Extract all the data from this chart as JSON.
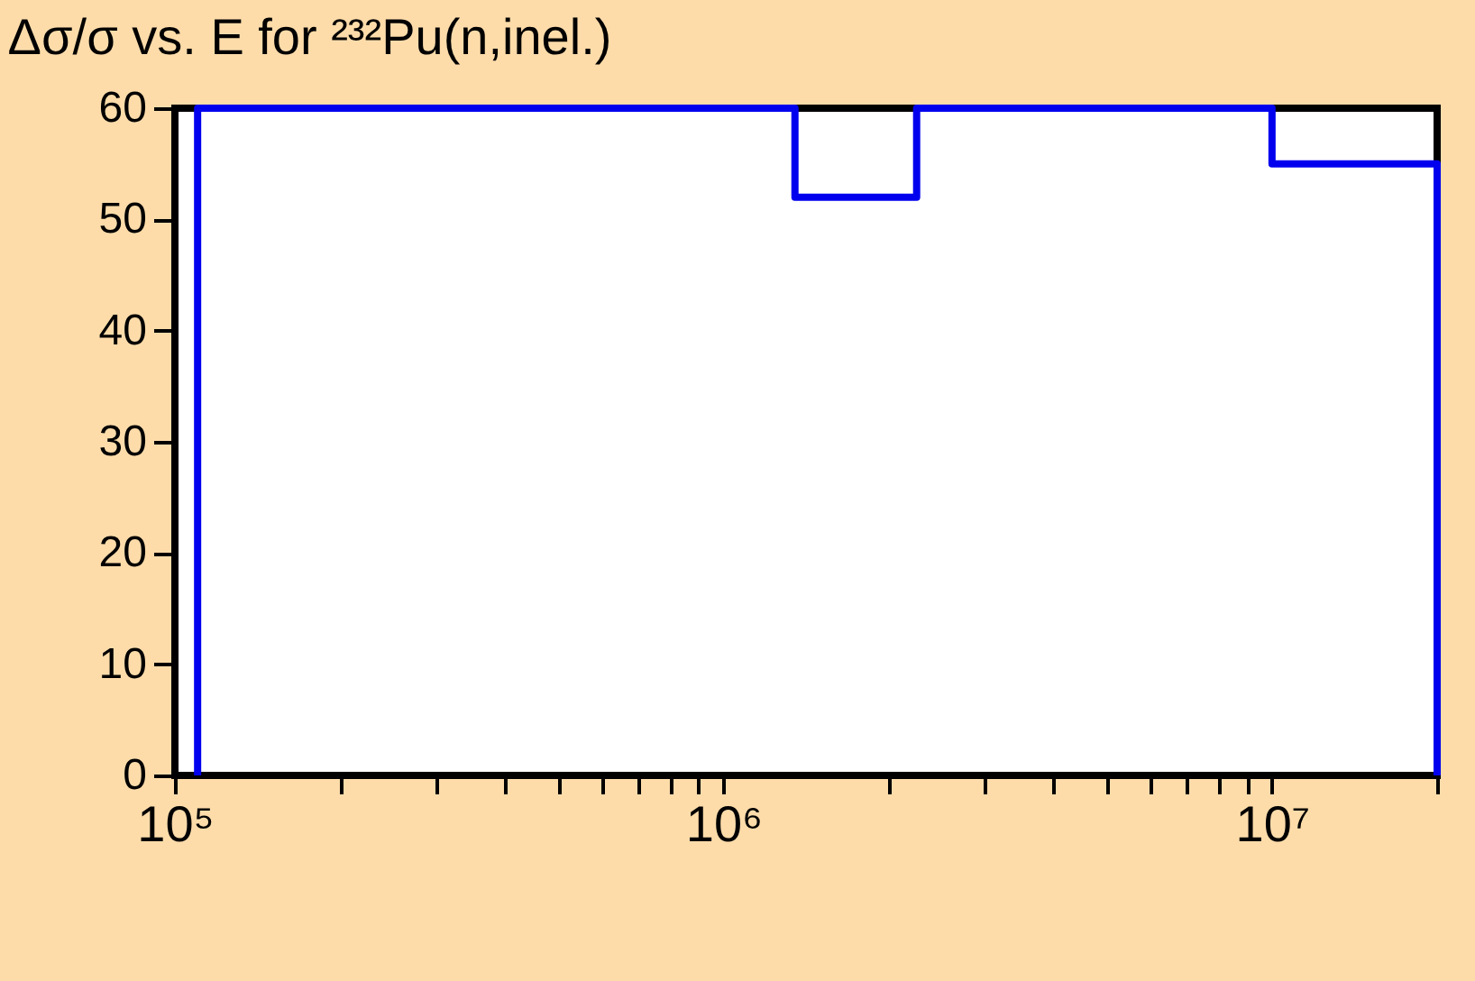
{
  "chart_data": {
    "type": "step",
    "title": "Δσ/σ vs. E for ²³²Pu(n,inel.)",
    "log": "x",
    "grid": false,
    "x": [
      110000,
      110000,
      1350000,
      2250000,
      10000000,
      20000000,
      20000000
    ],
    "series": [
      {
        "color": "#0000ee",
        "values": [
          0,
          60,
          52,
          60,
          55,
          55,
          0
        ]
      }
    ],
    "xlim": [
      100000,
      20000000
    ],
    "xticks": [
      {
        "value": 100000,
        "label": "10⁵"
      },
      {
        "value": 200000,
        "label": null
      },
      {
        "value": 300000,
        "label": null
      },
      {
        "value": 400000,
        "label": null
      },
      {
        "value": 500000,
        "label": null
      },
      {
        "value": 600000,
        "label": null
      },
      {
        "value": 700000,
        "label": null
      },
      {
        "value": 800000,
        "label": null
      },
      {
        "value": 900000,
        "label": null
      },
      {
        "value": 1000000,
        "label": "10⁶"
      },
      {
        "value": 2000000,
        "label": null
      },
      {
        "value": 3000000,
        "label": null
      },
      {
        "value": 4000000,
        "label": null
      },
      {
        "value": 5000000,
        "label": null
      },
      {
        "value": 6000000,
        "label": null
      },
      {
        "value": 7000000,
        "label": null
      },
      {
        "value": 8000000,
        "label": null
      },
      {
        "value": 9000000,
        "label": null
      },
      {
        "value": 10000000,
        "label": "10⁷"
      },
      {
        "value": 20000000,
        "label": null
      }
    ],
    "ylim": [
      0,
      60
    ],
    "yticks": [
      0,
      10,
      20,
      30,
      40,
      50,
      60
    ]
  }
}
